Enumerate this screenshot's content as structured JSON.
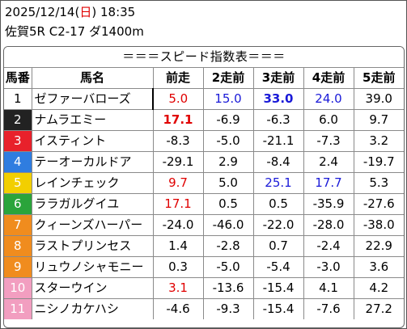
{
  "header": {
    "date": "2025/12/14",
    "weekday_open": "(",
    "weekday": "日",
    "weekday_close": ")",
    "time": "18:35",
    "race_info": "佐賀5R C2-17 ダ1400m"
  },
  "panel_title": "＝＝＝スピード指数表＝＝＝",
  "columns": [
    "馬番",
    "馬名",
    "前走",
    "2走前",
    "3走前",
    "4走前",
    "5走前"
  ],
  "colors": {
    "red": "#e00000",
    "blue": "#1a1ad8",
    "frame_1": "#ffffff",
    "frame_2": "#222222",
    "frame_3": "#e8212b",
    "frame_4": "#2f7de0",
    "frame_5": "#f2cf00",
    "frame_6": "#2aa43b",
    "frame_7": "#f08c1e",
    "frame_8": "#f08c1e",
    "frame_9": "#f08c1e",
    "frame_10": "#f29ec0",
    "frame_11": "#f29ec0"
  },
  "rows": [
    {
      "no": "1",
      "name": "ゼファーバローズ",
      "v": [
        "5.0",
        "15.0",
        "33.0",
        "24.0",
        "39.0"
      ],
      "style": [
        "red",
        "blue",
        "blue bold",
        "blue",
        ""
      ]
    },
    {
      "no": "2",
      "name": "ナムラエミー",
      "v": [
        "17.1",
        "-6.9",
        "-6.3",
        "6.0",
        "9.7"
      ],
      "style": [
        "red bold",
        "",
        "",
        "",
        ""
      ]
    },
    {
      "no": "3",
      "name": "イスティント",
      "v": [
        "-8.3",
        "-5.0",
        "-21.1",
        "-7.3",
        "3.2"
      ],
      "style": [
        "",
        "",
        "",
        "",
        ""
      ]
    },
    {
      "no": "4",
      "name": "テーオーカルドア",
      "v": [
        "-29.1",
        "2.9",
        "-8.4",
        "2.4",
        "-19.7"
      ],
      "style": [
        "",
        "",
        "",
        "",
        ""
      ]
    },
    {
      "no": "5",
      "name": "レインチェック",
      "v": [
        "9.7",
        "5.0",
        "25.1",
        "17.7",
        "5.3"
      ],
      "style": [
        "red",
        "",
        "blue",
        "blue",
        ""
      ]
    },
    {
      "no": "6",
      "name": "ララガルグイユ",
      "v": [
        "17.1",
        "0.5",
        "0.5",
        "-35.9",
        "-27.6"
      ],
      "style": [
        "red",
        "",
        "",
        "",
        ""
      ]
    },
    {
      "no": "7",
      "name": "クィーンズハーパー",
      "v": [
        "-24.0",
        "-46.0",
        "-22.0",
        "-28.0",
        "-38.0"
      ],
      "style": [
        "",
        "",
        "",
        "",
        ""
      ]
    },
    {
      "no": "8",
      "name": "ラストプリンセス",
      "v": [
        "1.4",
        "-2.8",
        "0.7",
        "-2.4",
        "22.9"
      ],
      "style": [
        "",
        "",
        "",
        "",
        ""
      ]
    },
    {
      "no": "9",
      "name": "リュウノシャモニー",
      "v": [
        "0.3",
        "-5.0",
        "-5.4",
        "-3.0",
        "3.6"
      ],
      "style": [
        "",
        "",
        "",
        "",
        ""
      ]
    },
    {
      "no": "10",
      "name": "スターウイン",
      "v": [
        "3.1",
        "-13.6",
        "-15.4",
        "4.1",
        "4.2"
      ],
      "style": [
        "red",
        "",
        "",
        "",
        ""
      ]
    },
    {
      "no": "11",
      "name": "ニシノカケハシ",
      "v": [
        "-4.6",
        "-9.3",
        "-15.4",
        "-7.6",
        "27.2"
      ],
      "style": [
        "",
        "",
        "",
        "",
        ""
      ]
    }
  ]
}
